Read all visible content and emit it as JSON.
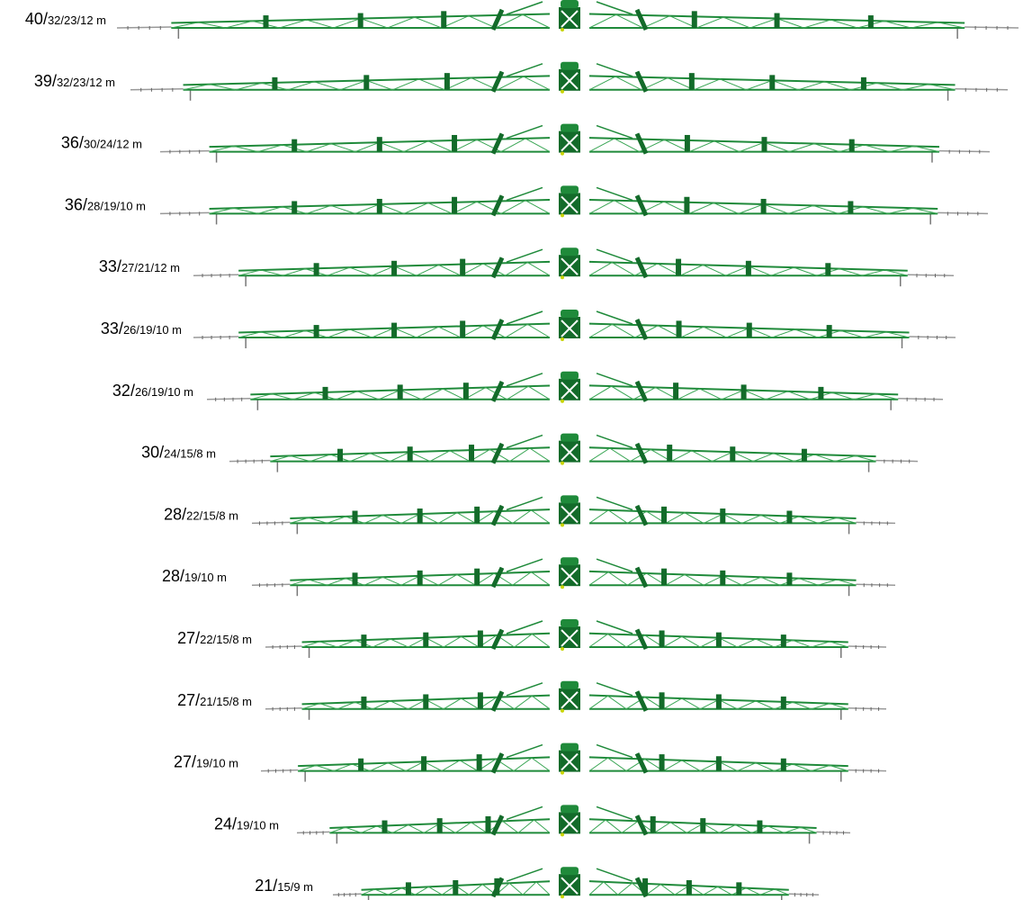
{
  "rows": [
    {
      "main": "40/",
      "sub": "32/23/12 m"
    },
    {
      "main": "39/",
      "sub": "32/23/12 m"
    },
    {
      "main": "36/",
      "sub": "30/24/12 m"
    },
    {
      "main": "36/",
      "sub": "28/19/10 m"
    },
    {
      "main": "33/",
      "sub": "27/21/12 m"
    },
    {
      "main": "33/",
      "sub": "26/19/10 m"
    },
    {
      "main": "32/",
      "sub": "26/19/10 m"
    },
    {
      "main": "30/",
      "sub": "24/15/8 m"
    },
    {
      "main": "28/",
      "sub": "22/15/8 m"
    },
    {
      "main": "28/",
      "sub": "19/10 m"
    },
    {
      "main": "27/",
      "sub": "22/15/8 m"
    },
    {
      "main": "27/",
      "sub": "21/15/8 m"
    },
    {
      "main": "27/",
      "sub": "19/10 m"
    },
    {
      "main": "24/",
      "sub": "19/10 m"
    },
    {
      "main": "21/",
      "sub": "15/9 m"
    }
  ]
}
